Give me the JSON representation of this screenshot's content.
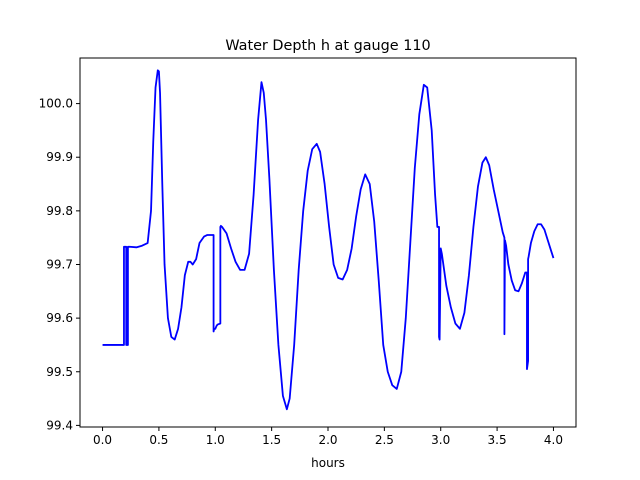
{
  "chart_data": {
    "type": "line",
    "title": "Water Depth h at gauge 110",
    "xlabel": "hours",
    "ylabel": "",
    "xlim": [
      -0.2,
      4.2
    ],
    "ylim": [
      99.397,
      100.085
    ],
    "xticks": [
      0.0,
      0.5,
      1.0,
      1.5,
      2.0,
      2.5,
      3.0,
      3.5,
      4.0
    ],
    "xtick_labels": [
      "0.0",
      "0.5",
      "1.0",
      "1.5",
      "2.0",
      "2.5",
      "3.0",
      "3.5",
      "4.0"
    ],
    "yticks": [
      99.4,
      99.5,
      99.6,
      99.7,
      99.8,
      99.9,
      100.0
    ],
    "ytick_labels": [
      "99.4",
      "99.5",
      "99.6",
      "99.7",
      "99.8",
      "99.9",
      "100.0"
    ],
    "grid": false,
    "legend": "none",
    "series": [
      {
        "color": "#0000ff",
        "x": [
          0.0,
          0.19,
          0.19,
          0.2,
          0.21,
          0.21,
          0.215,
          0.225,
          0.225,
          0.23,
          0.24,
          0.3,
          0.35,
          0.4,
          0.43,
          0.45,
          0.47,
          0.49,
          0.5,
          0.51,
          0.53,
          0.55,
          0.58,
          0.61,
          0.64,
          0.67,
          0.7,
          0.73,
          0.76,
          0.78,
          0.8,
          0.83,
          0.86,
          0.9,
          0.93,
          0.97,
          0.985,
          0.985,
          0.99,
          1.0,
          1.01,
          1.02,
          1.045,
          1.045,
          1.05,
          1.06,
          1.1,
          1.14,
          1.18,
          1.22,
          1.26,
          1.3,
          1.34,
          1.38,
          1.41,
          1.43,
          1.45,
          1.48,
          1.52,
          1.56,
          1.6,
          1.635,
          1.66,
          1.7,
          1.74,
          1.78,
          1.82,
          1.86,
          1.9,
          1.93,
          1.97,
          2.01,
          2.05,
          2.09,
          2.13,
          2.17,
          2.21,
          2.25,
          2.29,
          2.33,
          2.37,
          2.41,
          2.45,
          2.49,
          2.53,
          2.57,
          2.61,
          2.65,
          2.69,
          2.73,
          2.77,
          2.81,
          2.85,
          2.88,
          2.92,
          2.95,
          2.97,
          2.98,
          2.985,
          2.985,
          2.99,
          3.0,
          3.01,
          3.05,
          3.09,
          3.13,
          3.17,
          3.21,
          3.25,
          3.29,
          3.33,
          3.37,
          3.4,
          3.43,
          3.47,
          3.51,
          3.55,
          3.565,
          3.565,
          3.57,
          3.58,
          3.6,
          3.63,
          3.66,
          3.69,
          3.72,
          3.75,
          3.755,
          3.765,
          3.765,
          3.775,
          3.775,
          3.78,
          3.8,
          3.83,
          3.86,
          3.89,
          3.92,
          3.95,
          3.98,
          4.0
        ],
        "y": [
          99.55,
          99.55,
          99.733,
          99.733,
          99.733,
          99.55,
          99.55,
          99.55,
          99.733,
          99.733,
          99.733,
          99.732,
          99.735,
          99.74,
          99.8,
          99.93,
          100.03,
          100.062,
          100.06,
          100.02,
          99.85,
          99.7,
          99.6,
          99.565,
          99.56,
          99.58,
          99.62,
          99.68,
          99.705,
          99.705,
          99.7,
          99.71,
          99.74,
          99.752,
          99.755,
          99.755,
          99.755,
          99.575,
          99.58,
          99.58,
          99.585,
          99.588,
          99.59,
          99.77,
          99.772,
          99.77,
          99.758,
          99.73,
          99.705,
          99.69,
          99.69,
          99.72,
          99.83,
          99.97,
          100.04,
          100.02,
          99.97,
          99.86,
          99.69,
          99.55,
          99.455,
          99.43,
          99.45,
          99.55,
          99.69,
          99.8,
          99.875,
          99.915,
          99.925,
          99.91,
          99.85,
          99.77,
          99.7,
          99.675,
          99.672,
          99.69,
          99.73,
          99.79,
          99.84,
          99.868,
          99.85,
          99.78,
          99.67,
          99.55,
          99.5,
          99.475,
          99.468,
          99.5,
          99.6,
          99.74,
          99.88,
          99.98,
          100.035,
          100.03,
          99.95,
          99.83,
          99.77,
          99.77,
          99.77,
          99.565,
          99.56,
          99.73,
          99.72,
          99.66,
          99.62,
          99.59,
          99.58,
          99.61,
          99.68,
          99.77,
          99.845,
          99.89,
          99.9,
          99.885,
          99.84,
          99.8,
          99.76,
          99.75,
          99.57,
          99.745,
          99.735,
          99.7,
          99.67,
          99.652,
          99.65,
          99.665,
          99.685,
          99.685,
          99.685,
          99.505,
          99.52,
          99.71,
          99.715,
          99.74,
          99.762,
          99.775,
          99.775,
          99.765,
          99.745,
          99.725,
          99.712
        ]
      }
    ]
  }
}
